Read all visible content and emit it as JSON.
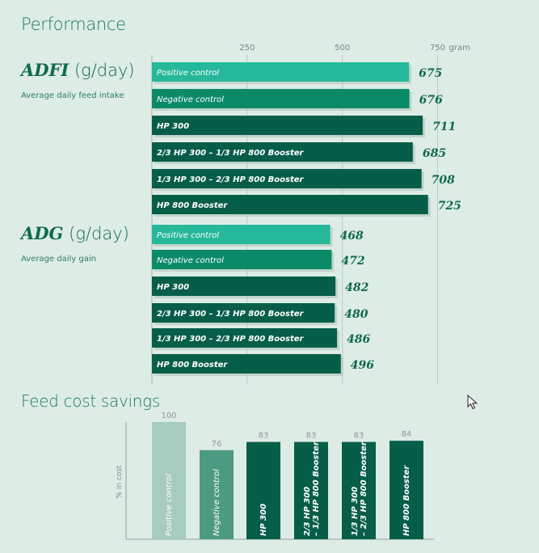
{
  "performance": {
    "title": "Performance",
    "unit_label": "gram",
    "ticks": [
      250,
      500,
      750
    ],
    "colors": {
      "positive_control": "#26b89a",
      "negative_control": "#0b8a68",
      "treatment": "#075e48"
    }
  },
  "adfi": {
    "abbr": "ADFI",
    "unit": "(g/day)",
    "description": "Average daily feed intake"
  },
  "adg": {
    "abbr": "ADG",
    "unit": "(g/day)",
    "description": "Average daily gain"
  },
  "cost": {
    "title": "Feed cost savings",
    "y_label": "% in cost",
    "colors": [
      "#a7cbbf",
      "#4c9a82",
      "#075e48",
      "#075e48",
      "#075e48",
      "#075e48"
    ]
  },
  "chart_data": [
    {
      "type": "bar",
      "orientation": "horizontal",
      "title": "ADFI (g/day)",
      "subtitle": "Average daily feed intake",
      "categories": [
        "Positive control",
        "Negative control",
        "HP 300",
        "2/3 HP 300 – 1/3 HP 800 Booster",
        "1/3 HP 300 – 2/3 HP 800 Booster",
        "HP 800 Booster"
      ],
      "values": [
        675,
        676,
        711,
        685,
        708,
        725
      ],
      "xlabel": "gram",
      "xlim": [
        0,
        850
      ],
      "grid": true
    },
    {
      "type": "bar",
      "orientation": "horizontal",
      "title": "ADG (g/day)",
      "subtitle": "Average daily gain",
      "categories": [
        "Positive control",
        "Negative control",
        "HP 300",
        "2/3 HP 300 – 1/3 HP 800 Booster",
        "1/3 HP 300 – 2/3 HP 800 Booster",
        "HP 800 Booster"
      ],
      "values": [
        468,
        472,
        482,
        480,
        486,
        496
      ],
      "xlabel": "gram",
      "xlim": [
        0,
        850
      ],
      "grid": true
    },
    {
      "type": "bar",
      "orientation": "vertical",
      "title": "Feed cost savings",
      "categories": [
        "Positive control",
        "Negative control",
        "HP 300",
        "2/3 HP 300 – 1/3 HP 800 Booster",
        "1/3 HP 300 – 2/3 HP 800 Booster",
        "HP 800 Booster"
      ],
      "col_labels": [
        [
          "Positive control"
        ],
        [
          "Negative control"
        ],
        [
          "HP 300"
        ],
        [
          "2/3 HP 300",
          "– 1/3 HP 800 Booster"
        ],
        [
          "1/3 HP 300",
          "– 2/3 HP 800 Booster"
        ],
        [
          "HP 800 Booster"
        ]
      ],
      "values": [
        100,
        76,
        83,
        83,
        83,
        84
      ],
      "ylabel": "% in cost",
      "ylim": [
        0,
        100
      ]
    }
  ]
}
